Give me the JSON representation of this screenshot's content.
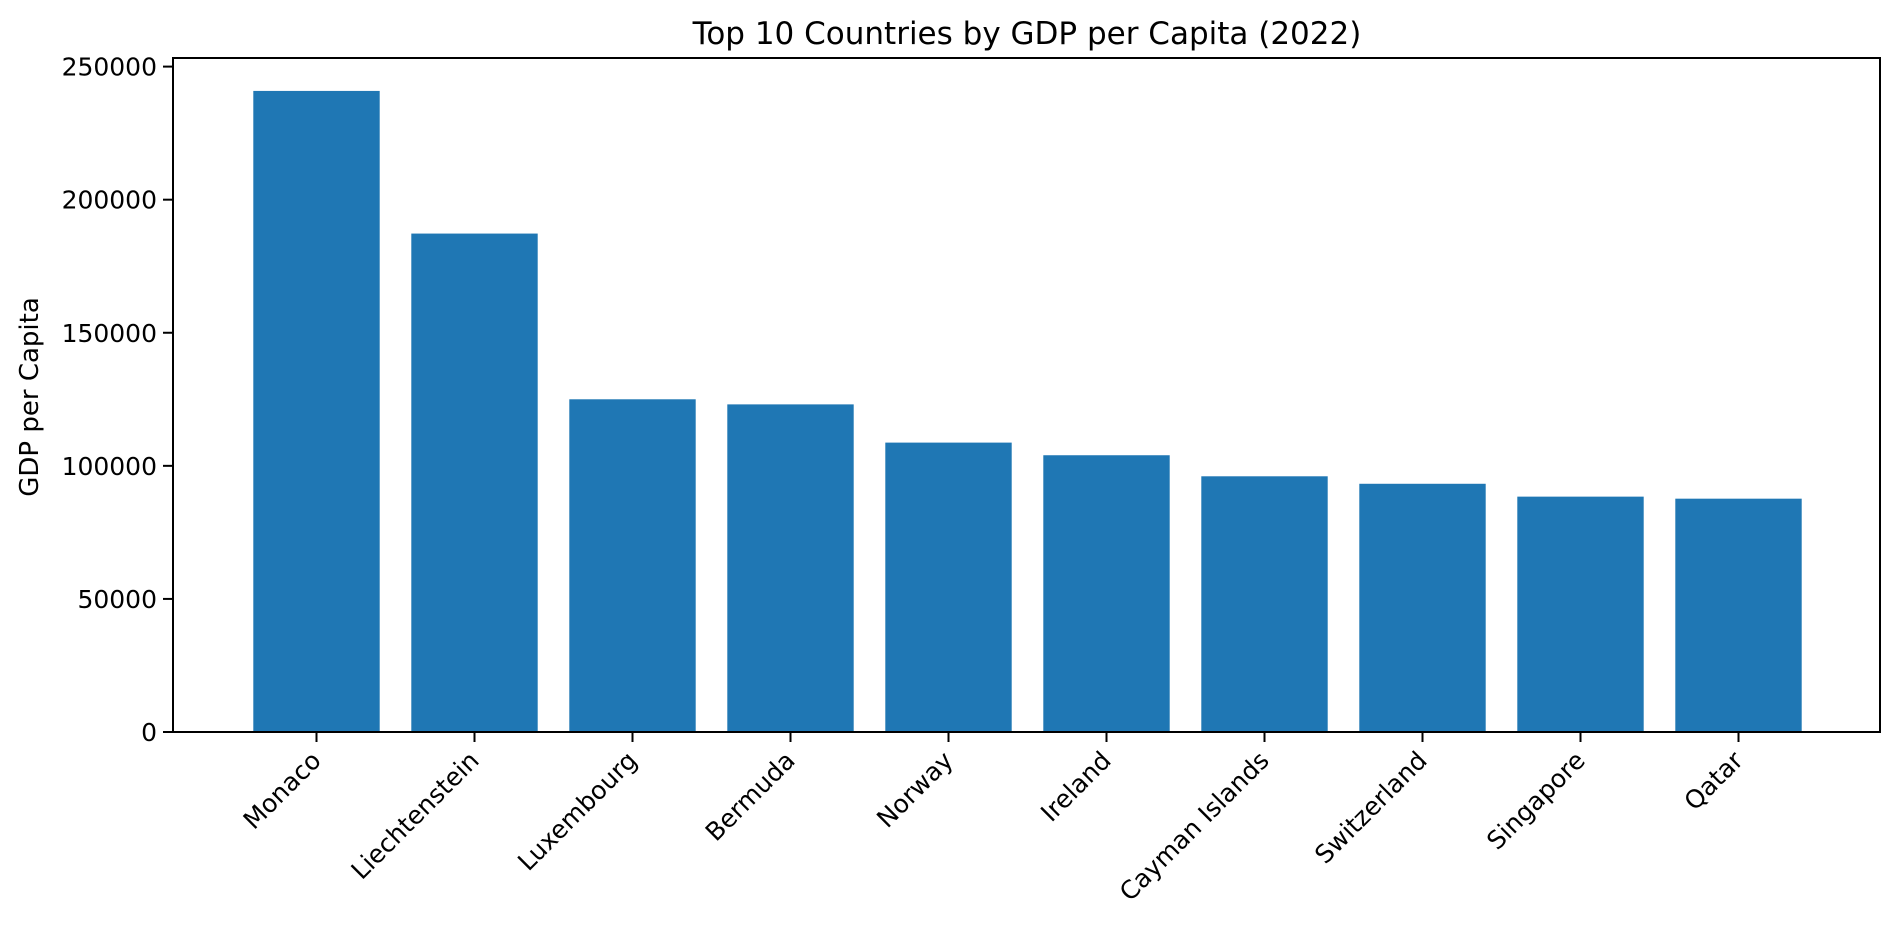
{
  "chart_data": {
    "type": "bar",
    "title": "Top 10 Countries by GDP per Capita (2022)",
    "xlabel": "",
    "ylabel": "GDP per Capita",
    "categories": [
      "Monaco",
      "Liechtenstein",
      "Luxembourg",
      "Bermuda",
      "Norway",
      "Ireland",
      "Cayman Islands",
      "Switzerland",
      "Singapore",
      "Qatar"
    ],
    "values": [
      240862,
      187267,
      125006,
      123091,
      108729,
      103983,
      96074,
      93260,
      88429,
      87662
    ],
    "ylim": [
      0,
      252900
    ],
    "yticks": [
      0,
      50000,
      100000,
      150000,
      200000,
      250000
    ],
    "ytick_labels": [
      "0",
      "50000",
      "100000",
      "150000",
      "200000",
      "250000"
    ],
    "grid": false,
    "bar_color": "#1f77b4"
  }
}
